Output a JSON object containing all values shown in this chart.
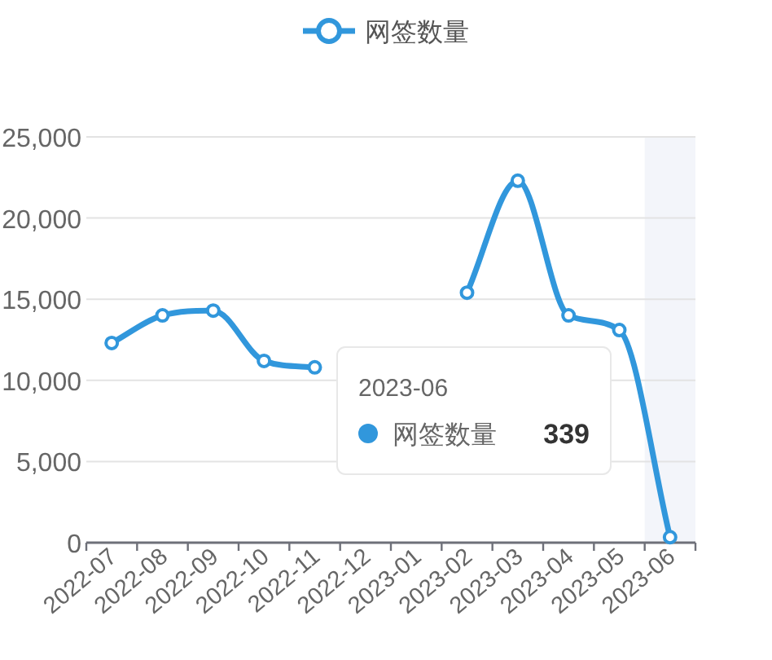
{
  "chart_data": {
    "type": "line",
    "categories": [
      "2022-07",
      "2022-08",
      "2022-09",
      "2022-10",
      "2022-11",
      "2022-12",
      "2023-01",
      "2023-02",
      "2023-03",
      "2023-04",
      "2023-05",
      "2023-06"
    ],
    "series": [
      {
        "name": "网签数量",
        "color": "#3197dc",
        "values": [
          12300,
          14000,
          14300,
          11200,
          10800,
          null,
          null,
          15400,
          22300,
          14000,
          13100,
          339
        ]
      }
    ],
    "ylim": [
      0,
      25000
    ],
    "yticks": [
      {
        "value": 0,
        "label": "0"
      },
      {
        "value": 5000,
        "label": "5,000"
      },
      {
        "value": 10000,
        "label": "10,000"
      },
      {
        "value": 15000,
        "label": "15,000"
      },
      {
        "value": 20000,
        "label": "20,000"
      },
      {
        "value": 25000,
        "label": "25,000"
      }
    ],
    "grid": "y",
    "legend": "top",
    "marker": "circle",
    "line_style": "solid",
    "bands": [
      {
        "axis": "x",
        "from": "2023-06",
        "to": "2023-06",
        "color": "#f3f5fa"
      }
    ],
    "annotations": [
      "2023-06",
      "网签数量",
      "339"
    ]
  }
}
